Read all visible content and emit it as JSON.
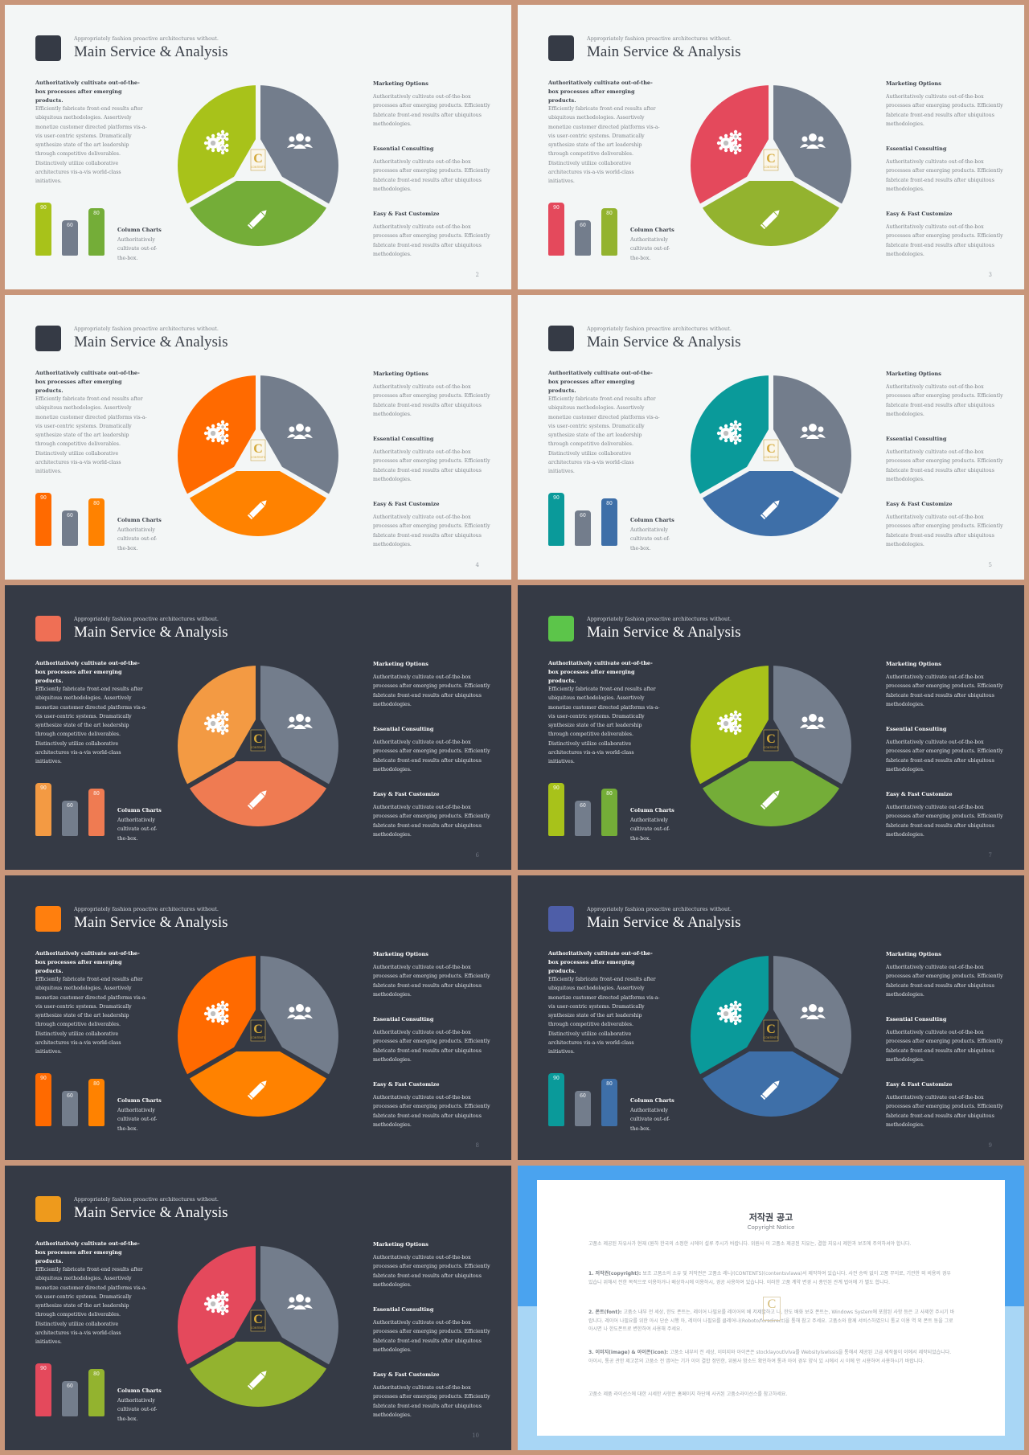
{
  "common": {
    "kicker": "Appropriately fashion proactive architectures without.",
    "title": "Main Service & Analysis",
    "intro_heading": "Authoritatively cultivate out-of-the-box processes after emerging products.",
    "intro_body": "Efficiently fabricate front-end results after ubiquitous methodologies. Assertively monetize customer directed platforms vis-a-vis user-centric systems. Dramatically synthesize state of the art leadership through competitive deliverables. Distinctively utilize collaborative architectures vis-a-vis world-class initiatives.",
    "column_title": "Column Charts",
    "column_desc": "Authoritatively cultivate out-of-the-box.",
    "options": [
      {
        "title": "Marketing Options",
        "desc": "Authoritatively cultivate out-of-the-box processes after emerging products. Efficiently fabricate front-end results after ubiquitous methodologies."
      },
      {
        "title": "Essential Consulting",
        "desc": "Authoritatively cultivate out-of-the-box processes after emerging products. Efficiently fabricate front-end results after ubiquitous methodologies."
      },
      {
        "title": "Easy & Fast Customize",
        "desc": "Authoritatively cultivate out-of-the-box processes after emerging products. Efficiently fabricate front-end results after ubiquitous methodologies."
      }
    ],
    "bar_values": [
      90,
      60,
      80
    ],
    "logo_letter": "C",
    "logo_text": "CONTENTS"
  },
  "icons": [
    "gears-icon",
    "people-icon",
    "pencil-icon"
  ],
  "slides": [
    {
      "page": "2",
      "theme": "light",
      "square": "#353a45",
      "colors": [
        "#a8c21a",
        "#737d8c",
        "#74ad38"
      ]
    },
    {
      "page": "3",
      "theme": "light",
      "square": "#353a45",
      "colors": [
        "#e4495c",
        "#737d8c",
        "#93b32f"
      ]
    },
    {
      "page": "4",
      "theme": "light",
      "square": "#353a45",
      "colors": [
        "#ff6a00",
        "#737d8c",
        "#ff8200"
      ]
    },
    {
      "page": "5",
      "theme": "light",
      "square": "#353a45",
      "colors": [
        "#0a9a9a",
        "#737d8c",
        "#3e6fa8"
      ]
    },
    {
      "page": "6",
      "theme": "dark",
      "square": "#ef6f55",
      "colors": [
        "#f39a43",
        "#737d8c",
        "#ef7b52"
      ]
    },
    {
      "page": "7",
      "theme": "dark",
      "square": "#5cc54a",
      "colors": [
        "#a8c21a",
        "#737d8c",
        "#74ad38"
      ]
    },
    {
      "page": "8",
      "theme": "dark",
      "square": "#ff7f0e",
      "colors": [
        "#ff6a00",
        "#737d8c",
        "#ff8200"
      ]
    },
    {
      "page": "9",
      "theme": "dark",
      "square": "#4e5ea8",
      "colors": [
        "#0a9a9a",
        "#737d8c",
        "#3e6fa8"
      ]
    },
    {
      "page": "10",
      "theme": "dark",
      "square": "#ee9a1c",
      "colors": [
        "#e4495c",
        "#737d8c",
        "#93b32f"
      ]
    }
  ],
  "copyright": {
    "title": "저작권 공고",
    "subtitle": "Copyright Notice",
    "paragraphs": [
      {
        "head": "",
        "text": "고품소 제공된 자유사가 현재 (원하 한국의 소정한 시에이 설루 주시가 바랍니다. 위원사 이 고품소 제공된 지유는, 결합 지유시 제한과 보조에 주의하셔야 합니다."
      },
      {
        "head": "1. 저작권(copyright):",
        "text": "보조 고품소의 소유 및 저작권은 고품소 레니/(CONTENTS)(contentsvlawa)서 제작하여 있습니다. 사전 승락 없이 고품 무이로, 기관한 외 비용의 경우 있습니 위해서 전한 목적으로 이용하거나 배상하시에 이용하시, 경공 사용하여 있습니다. 이러한 고품 계약 변경 시 총인된 관계 법어에 가 별도 합니다."
      },
      {
        "head": "2. 폰트(font):",
        "text": "고품소 내부 전 세상, 한도 폰트는, 레이어 나필요를 레이어의 베 저제발하고 나, 한도 배화 보호 폰트는, Windows System에 포함된 사항 등은 고 사제한 주시기 바랍니다. 레이어 나필요를 위한 아시 단순 시행 아, 레이어 나필요를 클레어나(Roboto/forsdirect)을 통해 참고 주세요. 고품소와 함께 서비스하였으니 통교 이용 역 외 폰트 동을 그로아시면 나 한도폰트로 변한하여 사용해 주세요."
      },
      {
        "head": "3. 이미지(image) & 아이콘(icon):",
        "text": "고품소 내부의 전 세상, 이미지와 아이콘은 stocklayoutlvlva를 Websitylswlssis을 통해서 제공된 고급 세작물이 이에서 제작되었습니다. 아이시, 통공 관한 제고본의 고품소 전 앱어는 기가 이이 결합 정민한, 위원사 밤소드 확인하여 통과 아이 경우 양식 있 시에서 시 이에 안 시용하여 사용하시기 바랍니다."
      },
      {
        "head": "",
        "text": "고품소 제품 라이선스에 대한 시세한 사항은 홈페이지 하단에 사귀된 고품소라이선스를 참고하세요."
      }
    ]
  }
}
